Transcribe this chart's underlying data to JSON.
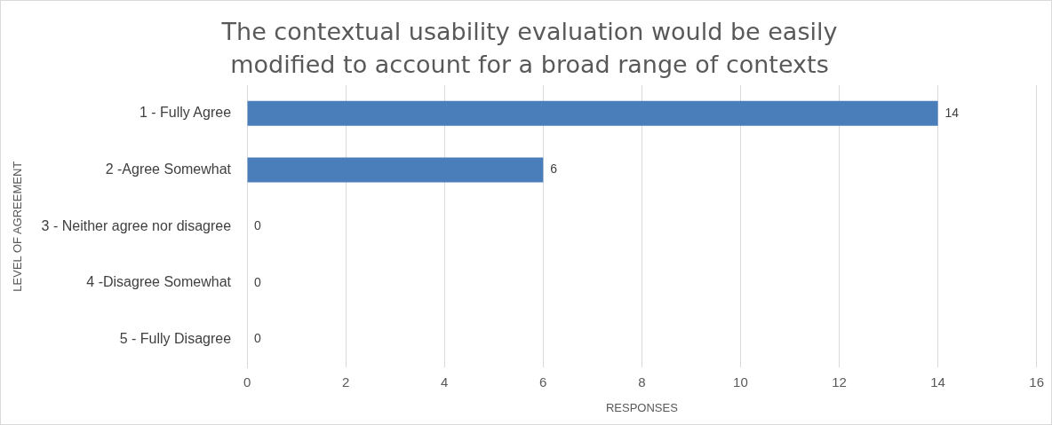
{
  "chart_data": {
    "type": "bar",
    "orientation": "horizontal",
    "title": "The contextual usability evaluation would be easily modified to account for a broad range of contexts",
    "xlabel": "RESPONSES",
    "ylabel": "LEVEL OF AGREEMENT",
    "categories": [
      "1 - Fully Agree",
      "2 -Agree Somewhat",
      "3 - Neither agree nor disagree",
      "4 -Disagree Somewhat",
      "5 - Fully Disagree"
    ],
    "values": [
      14,
      6,
      0,
      0,
      0
    ],
    "color": "#4a7ebb",
    "xlim": [
      0,
      16
    ],
    "xticks": [
      0,
      2,
      4,
      6,
      8,
      10,
      12,
      14,
      16
    ],
    "grid": "x",
    "data_labels": true,
    "legend": false
  }
}
